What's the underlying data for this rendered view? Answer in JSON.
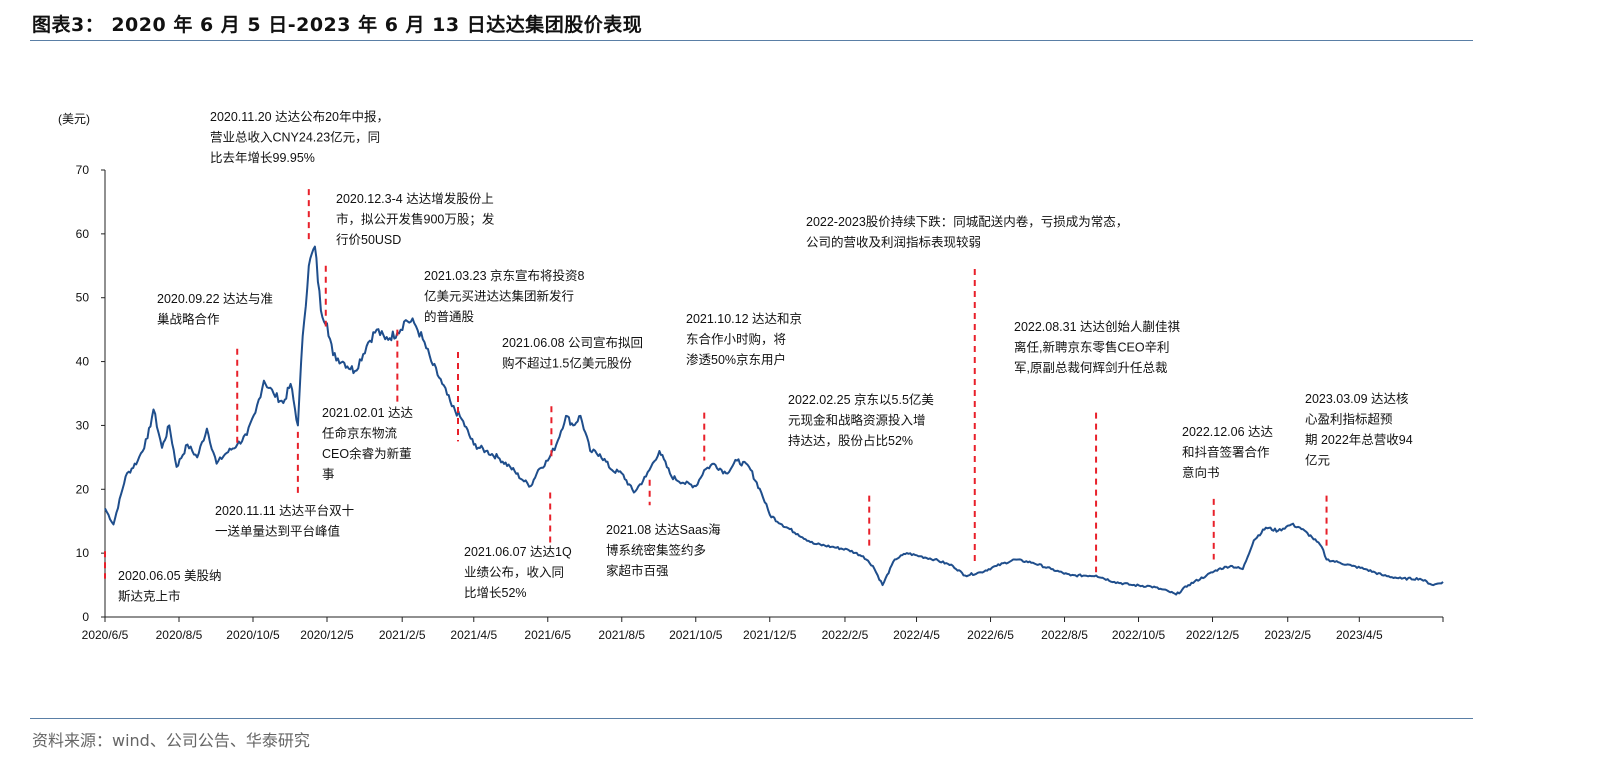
{
  "title": "图表3： 2020 年 6 月 5 日-2023 年 6 月 13 日达达集团股价表现",
  "source": "资料来源：wind、公司公告、华泰研究",
  "colors": {
    "line": "#1f4e8c",
    "marker": "#e8202a",
    "rule": "#5a7fa6"
  },
  "chart_data": {
    "type": "line",
    "title": "图表3： 2020 年 6 月 5 日-2023 年 6 月 13 日达达集团股价表现",
    "ylabel": "(美元)",
    "xlabel": "",
    "ylim": [
      0,
      70
    ],
    "yticks": [
      0,
      10,
      20,
      30,
      40,
      50,
      60,
      70
    ],
    "xlim": [
      "2020-06-05",
      "2023-06-13"
    ],
    "xticks": [
      "2020/6/5",
      "2020/8/5",
      "2020/10/5",
      "2020/12/5",
      "2021/2/5",
      "2021/4/5",
      "2021/6/5",
      "2021/8/5",
      "2021/10/5",
      "2021/12/5",
      "2022/2/5",
      "2022/4/5",
      "2022/6/5",
      "2022/8/5",
      "2022/10/5",
      "2022/12/5",
      "2023/2/5",
      "2023/4/5"
    ],
    "grid": false,
    "legend": "none",
    "series": [
      {
        "points": [
          [
            "2020-06-05",
            17.0
          ],
          [
            "2020-06-12",
            14.5
          ],
          [
            "2020-06-22",
            22.0
          ],
          [
            "2020-07-02",
            24.5
          ],
          [
            "2020-07-10",
            28.0
          ],
          [
            "2020-07-15",
            32.5
          ],
          [
            "2020-07-22",
            26.5
          ],
          [
            "2020-07-28",
            30.0
          ],
          [
            "2020-08-03",
            23.5
          ],
          [
            "2020-08-12",
            27.0
          ],
          [
            "2020-08-20",
            25.0
          ],
          [
            "2020-08-28",
            29.5
          ],
          [
            "2020-09-05",
            24.0
          ],
          [
            "2020-09-12",
            25.5
          ],
          [
            "2020-09-22",
            27.0
          ],
          [
            "2020-09-30",
            28.5
          ],
          [
            "2020-10-07",
            32.0
          ],
          [
            "2020-10-14",
            37.0
          ],
          [
            "2020-10-22",
            35.0
          ],
          [
            "2020-10-30",
            33.5
          ],
          [
            "2020-11-05",
            36.5
          ],
          [
            "2020-11-11",
            30.0
          ],
          [
            "2020-11-15",
            44.0
          ],
          [
            "2020-11-20",
            55.0
          ],
          [
            "2020-11-25",
            58.0
          ],
          [
            "2020-11-30",
            48.0
          ],
          [
            "2020-12-05",
            46.0
          ],
          [
            "2020-12-10",
            41.0
          ],
          [
            "2020-12-18",
            40.0
          ],
          [
            "2020-12-28",
            38.5
          ],
          [
            "2021-01-08",
            43.0
          ],
          [
            "2021-01-15",
            45.0
          ],
          [
            "2021-01-22",
            43.5
          ],
          [
            "2021-02-01",
            44.5
          ],
          [
            "2021-02-08",
            46.5
          ],
          [
            "2021-02-15",
            46.0
          ],
          [
            "2021-02-22",
            43.5
          ],
          [
            "2021-03-01",
            40.0
          ],
          [
            "2021-03-10",
            36.5
          ],
          [
            "2021-03-18",
            33.0
          ],
          [
            "2021-03-26",
            31.0
          ],
          [
            "2021-04-05",
            27.0
          ],
          [
            "2021-04-15",
            26.0
          ],
          [
            "2021-04-25",
            25.0
          ],
          [
            "2021-05-05",
            23.5
          ],
          [
            "2021-05-15",
            21.5
          ],
          [
            "2021-05-22",
            20.5
          ],
          [
            "2021-05-28",
            23.0
          ],
          [
            "2021-06-05",
            24.5
          ],
          [
            "2021-06-12",
            27.0
          ],
          [
            "2021-06-20",
            31.5
          ],
          [
            "2021-06-26",
            30.0
          ],
          [
            "2021-07-02",
            31.5
          ],
          [
            "2021-07-10",
            26.0
          ],
          [
            "2021-07-18",
            25.5
          ],
          [
            "2021-07-28",
            23.0
          ],
          [
            "2021-08-05",
            22.5
          ],
          [
            "2021-08-15",
            19.5
          ],
          [
            "2021-08-25",
            22.0
          ],
          [
            "2021-09-05",
            26.0
          ],
          [
            "2021-09-15",
            22.0
          ],
          [
            "2021-09-25",
            21.0
          ],
          [
            "2021-10-05",
            20.5
          ],
          [
            "2021-10-12",
            23.0
          ],
          [
            "2021-10-20",
            24.0
          ],
          [
            "2021-10-30",
            22.5
          ],
          [
            "2021-11-08",
            24.5
          ],
          [
            "2021-11-18",
            23.5
          ],
          [
            "2021-11-28",
            19.5
          ],
          [
            "2021-12-05",
            16.0
          ],
          [
            "2021-12-15",
            14.5
          ],
          [
            "2021-12-28",
            13.0
          ],
          [
            "2022-01-10",
            11.5
          ],
          [
            "2022-01-25",
            11.0
          ],
          [
            "2022-02-08",
            10.5
          ],
          [
            "2022-02-20",
            9.5
          ],
          [
            "2022-02-28",
            8.0
          ],
          [
            "2022-03-08",
            5.0
          ],
          [
            "2022-03-18",
            9.0
          ],
          [
            "2022-03-28",
            10.0
          ],
          [
            "2022-04-08",
            9.5
          ],
          [
            "2022-04-20",
            9.0
          ],
          [
            "2022-05-05",
            8.0
          ],
          [
            "2022-05-15",
            6.5
          ],
          [
            "2022-05-28",
            7.0
          ],
          [
            "2022-06-10",
            8.0
          ],
          [
            "2022-06-25",
            9.0
          ],
          [
            "2022-07-10",
            8.5
          ],
          [
            "2022-07-25",
            7.5
          ],
          [
            "2022-08-10",
            6.5
          ],
          [
            "2022-08-31",
            6.5
          ],
          [
            "2022-09-15",
            5.5
          ],
          [
            "2022-09-30",
            5.0
          ],
          [
            "2022-10-15",
            4.8
          ],
          [
            "2022-10-30",
            4.0
          ],
          [
            "2022-11-05",
            3.5
          ],
          [
            "2022-11-15",
            5.0
          ],
          [
            "2022-11-30",
            6.5
          ],
          [
            "2022-12-10",
            7.5
          ],
          [
            "2022-12-20",
            8.0
          ],
          [
            "2022-12-30",
            7.5
          ],
          [
            "2023-01-08",
            12.0
          ],
          [
            "2023-01-18",
            14.0
          ],
          [
            "2023-01-28",
            13.5
          ],
          [
            "2023-02-08",
            14.5
          ],
          [
            "2023-02-15",
            14.0
          ],
          [
            "2023-02-25",
            12.5
          ],
          [
            "2023-03-05",
            11.0
          ],
          [
            "2023-03-09",
            9.0
          ],
          [
            "2023-03-20",
            8.5
          ],
          [
            "2023-03-30",
            8.0
          ],
          [
            "2023-04-10",
            7.5
          ],
          [
            "2023-04-25",
            6.5
          ],
          [
            "2023-05-10",
            6.0
          ],
          [
            "2023-05-25",
            6.0
          ],
          [
            "2023-06-05",
            5.0
          ],
          [
            "2023-06-13",
            5.5
          ]
        ]
      }
    ],
    "annotations": [
      {
        "date": "2020-06-05",
        "line_y": [
          10.3,
          6.0
        ],
        "lines": [
          "2020.06.05 美股纳",
          "斯达克上市"
        ]
      },
      {
        "date": "2020-09-22",
        "line_y": [
          42.0,
          27.0
        ],
        "lines": [
          "2020.09.22 达达与准",
          "巢战略合作"
        ]
      },
      {
        "date": "2020-11-11",
        "line_y": [
          29.0,
          19.0
        ],
        "lines": [
          "2020.11.11 达达平台双十",
          "一送单量达到平台峰值"
        ]
      },
      {
        "date": "2020-11-20",
        "line_y": [
          67.0,
          58.5
        ],
        "lines": [
          "2020.11.20 达达公布20年中报，",
          "营业总收入CNY24.23亿元，同",
          "比去年增长99.95%"
        ]
      },
      {
        "date": "2020-12-04",
        "line_y": [
          55.0,
          45.5
        ],
        "lines": [
          "2020.12.3-4 达达增发股份上",
          "市，拟公开发售900万股；发",
          "行价50USD"
        ]
      },
      {
        "date": "2021-02-01",
        "line_y": [
          45.0,
          33.5
        ],
        "lines": [
          "2021.02.01 达达",
          "任命京东物流",
          "CEO余睿为新董",
          "事"
        ]
      },
      {
        "date": "2021-03-23",
        "line_y": [
          41.5,
          27.5
        ],
        "lines": [
          "2021.03.23 京东宣布将投资8",
          "亿美元买进达达集团新发行",
          "的普通股"
        ]
      },
      {
        "date": "2021-06-07",
        "line_y": [
          19.5,
          11.0
        ],
        "lines": [
          "2021.06.07 达达1Q",
          "业绩公布，收入同",
          "比增长52%"
        ]
      },
      {
        "date": "2021-06-08",
        "line_y": [
          33.0,
          25.0
        ],
        "lines": [
          "2021.06.08 公司宣布拟回",
          "购不超过1.5亿美元股份"
        ]
      },
      {
        "date": "2021-08-28",
        "line_y": [
          21.5,
          17.5
        ],
        "lines": [
          "2021.08 达达Saas海",
          "博系统密集签约多",
          "家超市百强"
        ]
      },
      {
        "date": "2021-10-12",
        "line_y": [
          32.0,
          24.5
        ],
        "lines": [
          "2021.10.12 达达和京",
          "东合作小时购，将",
          "渗透50%京东用户"
        ]
      },
      {
        "date": "2022-02-25",
        "line_y": [
          19.0,
          11.0
        ],
        "lines": [
          "2022.02.25 京东以5.5亿美",
          "元现金和战略资源投入增",
          "持达达，股份占比52%"
        ]
      },
      {
        "date": "2022-05-23",
        "line_y": [
          54.5,
          8.5
        ],
        "lines": [
          "2022-2023股价持续下跌：同城配送内卷，亏损成为常态，",
          "公司的营收及利润指标表现较弱"
        ]
      },
      {
        "date": "2022-08-31",
        "line_y": [
          32.0,
          7.0
        ],
        "lines": [
          "2022.08.31 达达创始人蒯佳祺",
          "离任,新聘京东零售CEO辛利",
          "军,原副总裁何辉剑升任总裁"
        ]
      },
      {
        "date": "2022-12-06",
        "line_y": [
          18.5,
          9.0
        ],
        "lines": [
          "2022.12.06 达达",
          "和抖音签署合作",
          "意向书"
        ]
      },
      {
        "date": "2023-03-09",
        "line_y": [
          19.0,
          10.5
        ],
        "lines": [
          "2023.03.09 达达核",
          "心盈利指标超预",
          "期 2022年总营收94",
          "亿元"
        ]
      }
    ]
  }
}
